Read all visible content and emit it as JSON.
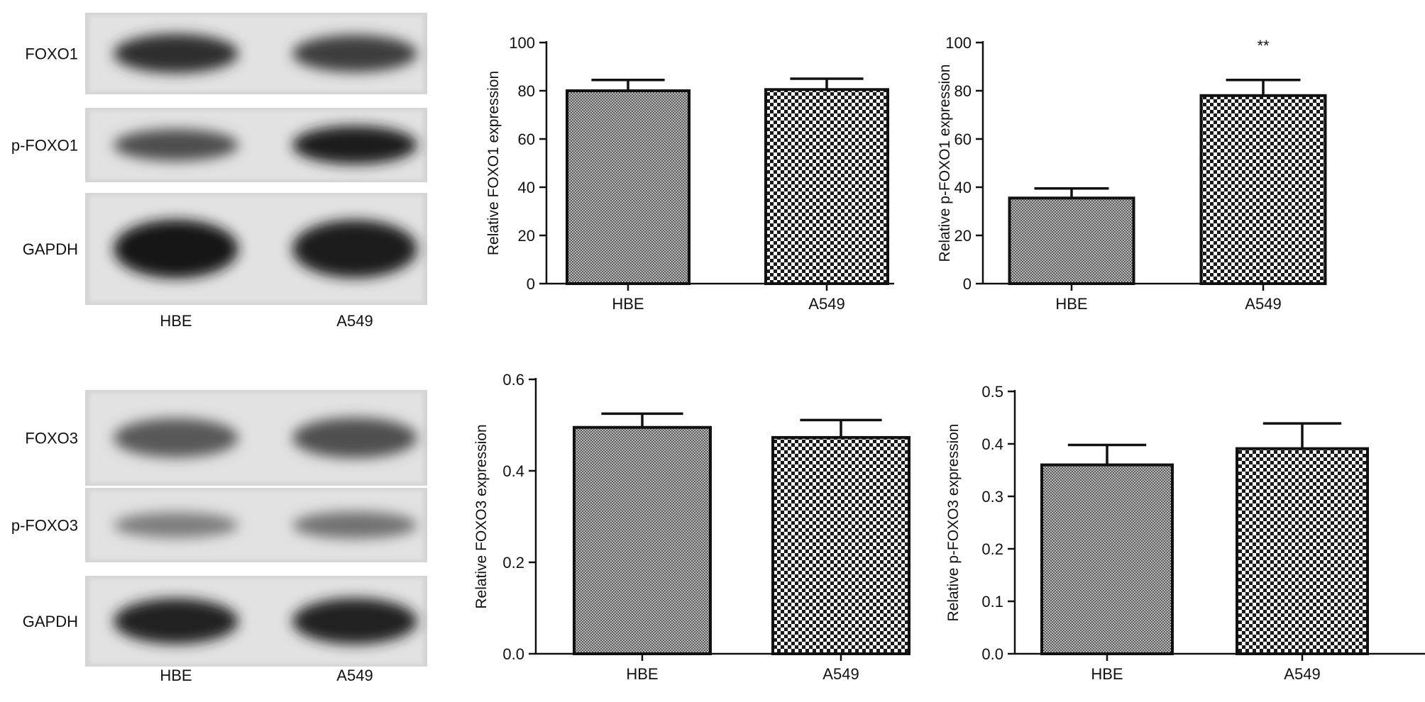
{
  "blots": [
    {
      "lanes": [
        "HBE",
        "A549"
      ],
      "rows": [
        {
          "label": "FOXO1",
          "hbe": 0.82,
          "a549": 0.72
        },
        {
          "label": "p-FOXO1",
          "hbe": 0.62,
          "a549": 0.95
        },
        {
          "label": "GAPDH",
          "hbe": 0.98,
          "a549": 0.96
        }
      ]
    },
    {
      "lanes": [
        "HBE",
        "A549"
      ],
      "rows": [
        {
          "label": "FOXO3",
          "hbe": 0.55,
          "a549": 0.6
        },
        {
          "label": "p-FOXO3",
          "hbe": 0.3,
          "a549": 0.38
        },
        {
          "label": "GAPDH",
          "hbe": 0.9,
          "a549": 0.92
        }
      ]
    }
  ],
  "chart_data": [
    {
      "type": "bar",
      "categories": [
        "HBE",
        "A549"
      ],
      "values": [
        80,
        80.5
      ],
      "errors": [
        4.5,
        4.5
      ],
      "significance": [
        "",
        ""
      ],
      "ylabel": "Relative FOXO1 expression",
      "ylim": [
        0,
        100
      ],
      "yticks": [
        "0",
        "20",
        "40",
        "60",
        "80",
        "100"
      ],
      "yticks_values": [
        0,
        20,
        40,
        60,
        80,
        100
      ],
      "patterns": [
        "fine-check",
        "checker"
      ],
      "grid": false
    },
    {
      "type": "bar",
      "categories": [
        "HBE",
        "A549"
      ],
      "values": [
        35.5,
        78
      ],
      "errors": [
        4,
        6.5
      ],
      "significance": [
        "",
        "**"
      ],
      "ylabel": "Relative p-FOXO1 expression",
      "ylim": [
        0,
        100
      ],
      "yticks": [
        "0",
        "20",
        "40",
        "60",
        "80",
        "100"
      ],
      "yticks_values": [
        0,
        20,
        40,
        60,
        80,
        100
      ],
      "patterns": [
        "fine-check",
        "checker"
      ],
      "grid": false
    },
    {
      "type": "bar",
      "categories": [
        "HBE",
        "A549"
      ],
      "values": [
        0.495,
        0.473
      ],
      "errors": [
        0.03,
        0.038
      ],
      "significance": [
        "",
        ""
      ],
      "ylabel": "Relative FOXO3 expression",
      "ylim": [
        0,
        0.6
      ],
      "yticks": [
        "0.0",
        "0.2",
        "0.4",
        "0.6"
      ],
      "yticks_values": [
        0,
        0.2,
        0.4,
        0.6
      ],
      "patterns": [
        "fine-check",
        "checker"
      ],
      "grid": false
    },
    {
      "type": "bar",
      "categories": [
        "HBE",
        "A549"
      ],
      "values": [
        0.36,
        0.391
      ],
      "errors": [
        0.038,
        0.048
      ],
      "significance": [
        "",
        ""
      ],
      "ylabel": "Relative p-FOXO3 expression",
      "ylim": [
        0,
        0.5
      ],
      "yticks": [
        "0.0",
        "0.1",
        "0.2",
        "0.3",
        "0.4",
        "0.5"
      ],
      "yticks_values": [
        0,
        0.1,
        0.2,
        0.3,
        0.4,
        0.5
      ],
      "patterns": [
        "fine-check",
        "checker"
      ],
      "grid": false
    }
  ]
}
